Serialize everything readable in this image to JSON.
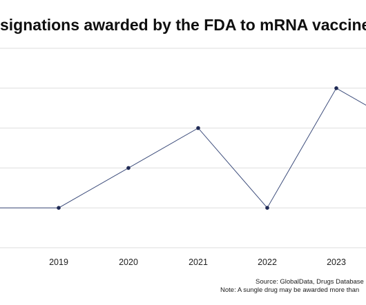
{
  "title": "signations awarded by the FDA to mRNA vaccines",
  "source": "Source: GlobalData, Drugs Database",
  "note": "Note: A sungle drug may be awarded more than",
  "colors": {
    "line": "#3b4b7a",
    "marker": "#1f2a55",
    "grid": "#dedede",
    "text": "#111111"
  },
  "chart_data": {
    "type": "line",
    "categories": [
      "2019",
      "2020",
      "2021",
      "2022",
      "2023"
    ],
    "series": [
      {
        "values": [
          1,
          2,
          3,
          1,
          4
        ]
      }
    ],
    "ylim": [
      0,
      5
    ],
    "grid": true,
    "visible_partial_points": {
      "before_first_category": 1,
      "after_last_category": 3
    }
  }
}
